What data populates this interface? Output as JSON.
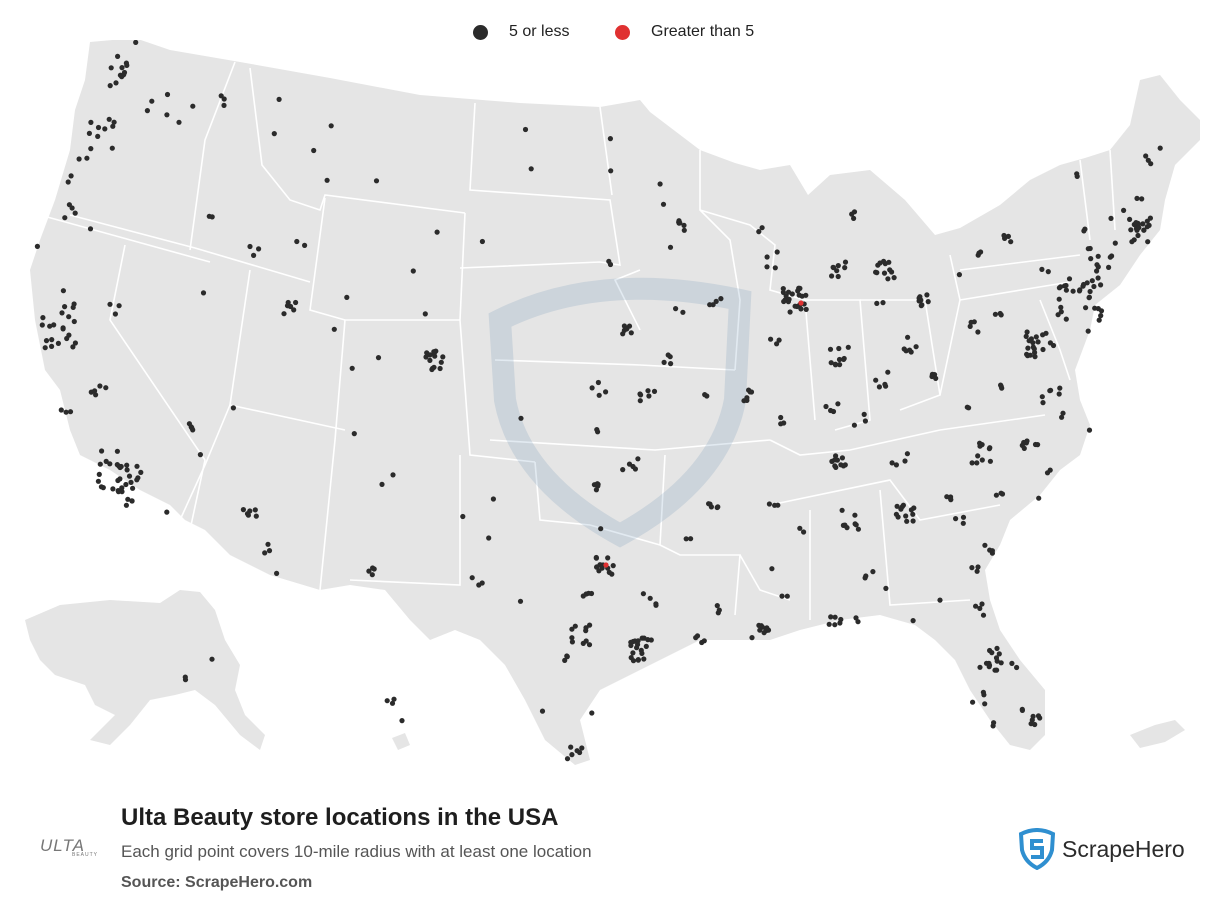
{
  "legend": {
    "items": [
      {
        "label": "5 or less",
        "color": "#2b2b2b"
      },
      {
        "label": "Greater than 5",
        "color": "#e03131"
      }
    ]
  },
  "footer": {
    "title": "Ulta Beauty store locations in the USA",
    "subtitle": "Each grid point covers 10-mile radius with at least one location",
    "source": "Source: ScrapeHero.com",
    "brand_logo_text": "ULTA",
    "brand_logo_subtext": "BEAUTY",
    "publisher_logo_text": "ScrapeHero"
  },
  "colors": {
    "land": "#e5e5e5",
    "borders": "#ffffff",
    "dot_low": "#2b2b2b",
    "dot_high": "#e03131",
    "publisher_blue": "#2f8fd0"
  }
}
